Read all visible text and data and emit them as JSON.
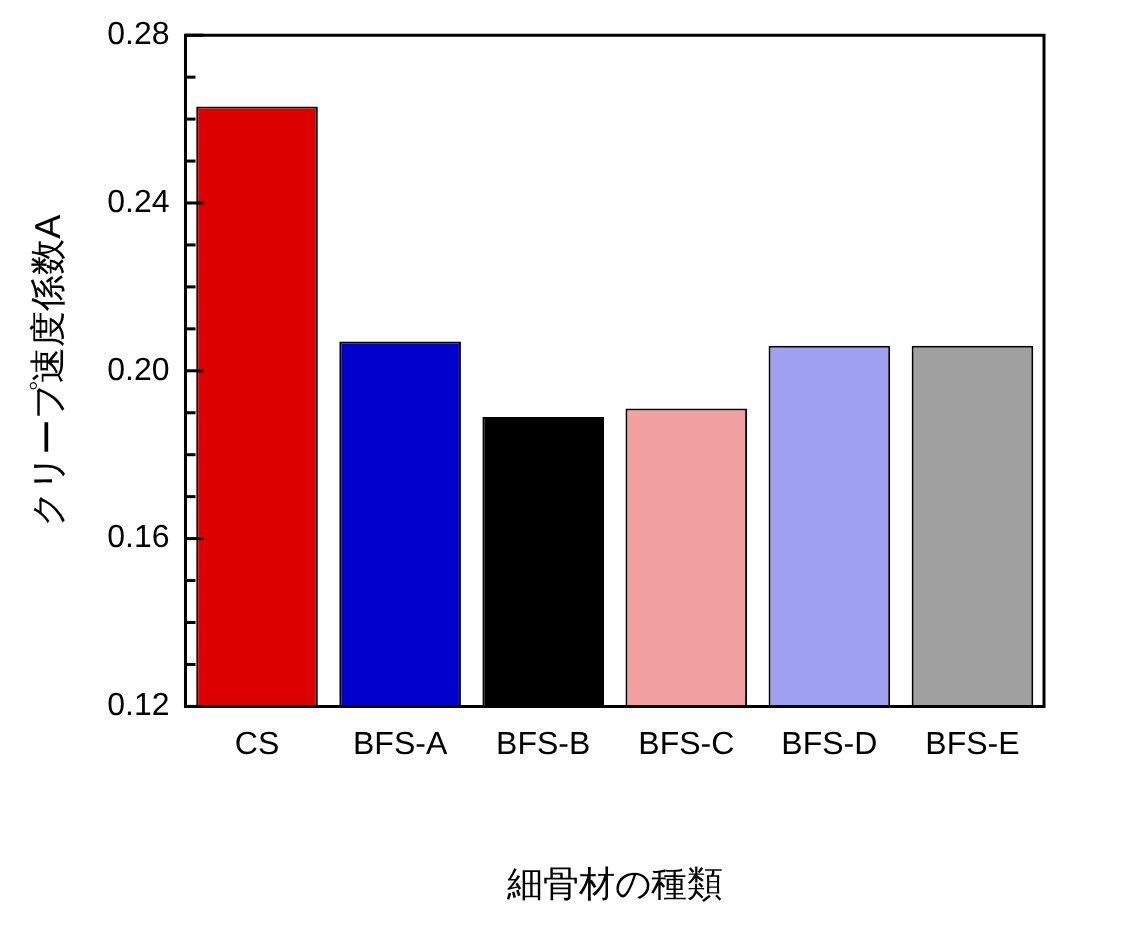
{
  "chart_data": {
    "type": "bar",
    "xlabel": "細骨材の種類",
    "ylabel": "クリープ速度係数A",
    "categories": [
      "CS",
      "BFS-A",
      "BFS-B",
      "BFS-C",
      "BFS-D",
      "BFS-E"
    ],
    "values": [
      0.263,
      0.207,
      0.189,
      0.191,
      0.206,
      0.206
    ],
    "colors": [
      "#dd0000",
      "#0000cc",
      "#000000",
      "#f3a0a0",
      "#a0a0f0",
      "#a0a0a0"
    ],
    "ylim": [
      0.12,
      0.28
    ],
    "yticks": [
      0.12,
      {
        "value": 0.13,
        "label": null
      },
      {
        "value": 0.14,
        "label": null
      },
      {
        "value": 0.15,
        "label": null
      },
      0.16,
      {
        "value": 0.17,
        "label": null
      },
      {
        "value": 0.18,
        "label": null
      },
      {
        "value": 0.19,
        "label": null
      },
      {
        "value": 0.2,
        "label": "0.20"
      },
      {
        "value": 0.21,
        "label": null
      },
      {
        "value": 0.22,
        "label": null
      },
      {
        "value": 0.23,
        "label": null
      },
      0.24,
      {
        "value": 0.25,
        "label": null
      },
      {
        "value": 0.26,
        "label": null
      },
      {
        "value": 0.27,
        "label": null
      },
      0.28
    ],
    "grid": false,
    "legend": false
  }
}
